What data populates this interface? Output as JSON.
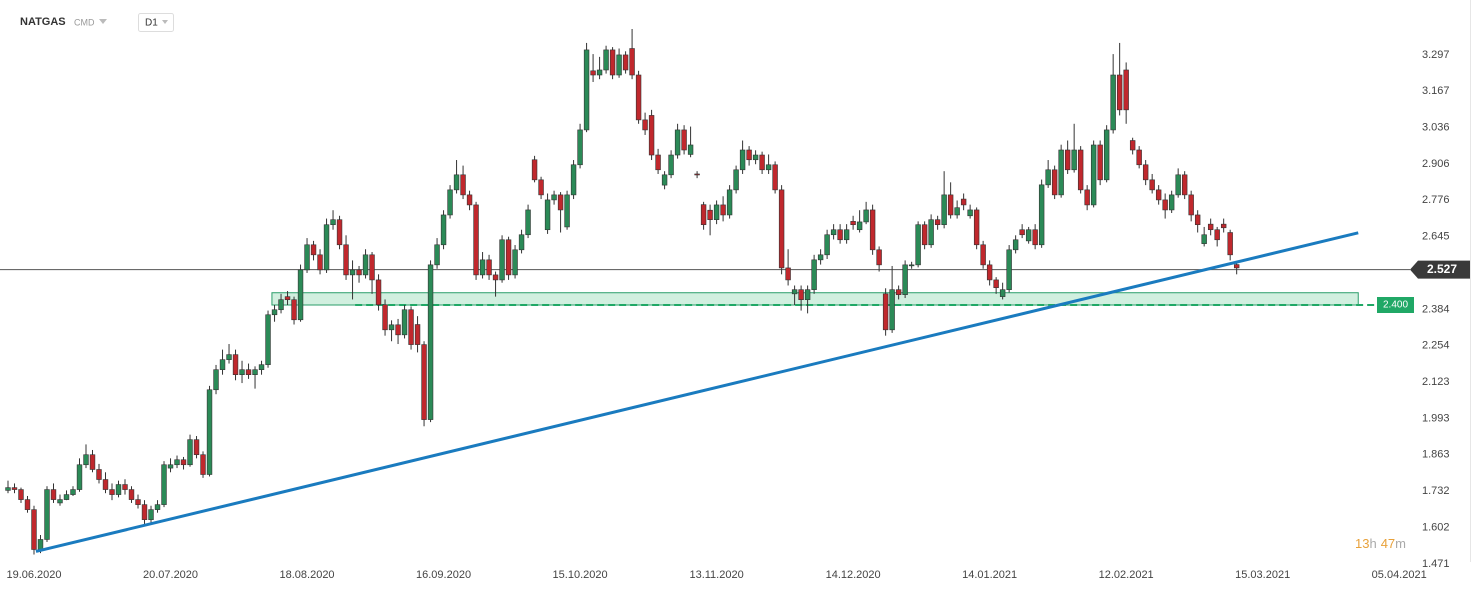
{
  "chart_data": {
    "type": "candlestick",
    "title": "NATGAS",
    "instrument_type": "CMD",
    "timeframe": "D1",
    "up_color": "#2b8a57",
    "down_color": "#c0282d",
    "ylim": [
      1.471,
      3.494
    ],
    "yticks": [
      3.297,
      3.167,
      3.036,
      2.906,
      2.776,
      2.645,
      2.384,
      2.254,
      2.123,
      1.993,
      1.863,
      1.732,
      1.602,
      1.471
    ],
    "xlim": [
      -1.23,
      217.2
    ],
    "xticks": [
      {
        "value": 4,
        "label": "19.06.2020"
      },
      {
        "value": 25,
        "label": "20.07.2020"
      },
      {
        "value": 46,
        "label": "18.08.2020"
      },
      {
        "value": 67,
        "label": "16.09.2020"
      },
      {
        "value": 88,
        "label": "15.10.2020"
      },
      {
        "value": 109,
        "label": "13.11.2020"
      },
      {
        "value": 130,
        "label": "14.12.2020"
      },
      {
        "value": 151,
        "label": "14.01.2021"
      },
      {
        "value": 172,
        "label": "12.02.2021"
      },
      {
        "value": 193,
        "label": "15.03.2021"
      },
      {
        "value": 214,
        "label": "05.04.2021"
      }
    ],
    "current_price": 2.527,
    "level": {
      "value": 2.4,
      "label": "2.400",
      "x_start": 53.4,
      "color": "#20a866"
    },
    "zone": {
      "low": 2.4,
      "high": 2.444,
      "x_start": 40.6,
      "x_end": 207.7
    },
    "trendline": {
      "x": [
        4.3,
        207.7
      ],
      "values": [
        1.516,
        2.659
      ],
      "color": "#1a7bbf"
    },
    "countdown": {
      "hours": "13",
      "hours_unit": "h",
      "minutes": "47",
      "minutes_unit": "m"
    },
    "candles": [
      [
        1.735,
        1.77,
        1.725,
        1.745
      ],
      [
        1.745,
        1.76,
        1.725,
        1.738
      ],
      [
        1.738,
        1.745,
        1.69,
        1.702
      ],
      [
        1.702,
        1.715,
        1.655,
        1.666
      ],
      [
        1.666,
        1.68,
        1.505,
        1.523
      ],
      [
        1.523,
        1.575,
        1.51,
        1.559
      ],
      [
        1.559,
        1.75,
        1.55,
        1.738
      ],
      [
        1.738,
        1.76,
        1.69,
        1.702
      ],
      [
        1.69,
        1.72,
        1.68,
        1.702
      ],
      [
        1.702,
        1.735,
        1.7,
        1.72
      ],
      [
        1.72,
        1.75,
        1.715,
        1.738
      ],
      [
        1.738,
        1.85,
        1.73,
        1.827
      ],
      [
        1.827,
        1.9,
        1.815,
        1.863
      ],
      [
        1.863,
        1.88,
        1.8,
        1.81
      ],
      [
        1.81,
        1.83,
        1.76,
        1.774
      ],
      [
        1.774,
        1.8,
        1.725,
        1.738
      ],
      [
        1.738,
        1.76,
        1.7,
        1.72
      ],
      [
        1.72,
        1.77,
        1.71,
        1.756
      ],
      [
        1.756,
        1.775,
        1.72,
        1.738
      ],
      [
        1.738,
        1.75,
        1.69,
        1.702
      ],
      [
        1.702,
        1.72,
        1.67,
        1.684
      ],
      [
        1.684,
        1.7,
        1.61,
        1.63
      ],
      [
        1.63,
        1.68,
        1.615,
        1.666
      ],
      [
        1.666,
        1.7,
        1.655,
        1.684
      ],
      [
        1.684,
        1.84,
        1.675,
        1.827
      ],
      [
        1.815,
        1.85,
        1.8,
        1.827
      ],
      [
        1.827,
        1.86,
        1.815,
        1.845
      ],
      [
        1.845,
        1.855,
        1.81,
        1.827
      ],
      [
        1.827,
        1.935,
        1.82,
        1.917
      ],
      [
        1.917,
        1.93,
        1.85,
        1.863
      ],
      [
        1.863,
        1.875,
        1.78,
        1.792
      ],
      [
        1.792,
        2.11,
        1.785,
        2.096
      ],
      [
        2.096,
        2.185,
        2.08,
        2.168
      ],
      [
        2.168,
        2.24,
        2.15,
        2.204
      ],
      [
        2.204,
        2.26,
        2.19,
        2.222
      ],
      [
        2.222,
        2.24,
        2.13,
        2.15
      ],
      [
        2.15,
        2.2,
        2.12,
        2.168
      ],
      [
        2.168,
        2.19,
        2.135,
        2.15
      ],
      [
        2.15,
        2.18,
        2.1,
        2.168
      ],
      [
        2.168,
        2.2,
        2.15,
        2.186
      ],
      [
        2.186,
        2.38,
        2.175,
        2.365
      ],
      [
        2.365,
        2.4,
        2.34,
        2.383
      ],
      [
        2.383,
        2.44,
        2.37,
        2.419
      ],
      [
        2.43,
        2.45,
        2.4,
        2.419
      ],
      [
        2.419,
        2.43,
        2.33,
        2.347
      ],
      [
        2.347,
        2.545,
        2.34,
        2.526
      ],
      [
        2.526,
        2.64,
        2.515,
        2.616
      ],
      [
        2.616,
        2.63,
        2.56,
        2.58
      ],
      [
        2.58,
        2.6,
        2.51,
        2.526
      ],
      [
        2.526,
        2.71,
        2.515,
        2.688
      ],
      [
        2.688,
        2.74,
        2.67,
        2.706
      ],
      [
        2.706,
        2.72,
        2.6,
        2.616
      ],
      [
        2.616,
        2.65,
        2.49,
        2.508
      ],
      [
        2.508,
        2.56,
        2.42,
        2.526
      ],
      [
        2.526,
        2.54,
        2.48,
        2.508
      ],
      [
        2.508,
        2.6,
        2.495,
        2.58
      ],
      [
        2.58,
        2.59,
        2.44,
        2.49
      ],
      [
        2.49,
        2.51,
        2.38,
        2.401
      ],
      [
        2.401,
        2.42,
        2.29,
        2.311
      ],
      [
        2.311,
        2.345,
        2.27,
        2.329
      ],
      [
        2.329,
        2.35,
        2.26,
        2.293
      ],
      [
        2.293,
        2.4,
        2.28,
        2.383
      ],
      [
        2.383,
        2.395,
        2.24,
        2.258
      ],
      [
        2.33,
        2.36,
        2.23,
        2.258
      ],
      [
        2.258,
        2.27,
        1.965,
        1.989
      ],
      [
        1.989,
        2.56,
        1.98,
        2.544
      ],
      [
        2.544,
        2.64,
        2.53,
        2.616
      ],
      [
        2.616,
        2.74,
        2.6,
        2.723
      ],
      [
        2.723,
        2.83,
        2.71,
        2.813
      ],
      [
        2.813,
        2.92,
        2.8,
        2.867
      ],
      [
        2.867,
        2.9,
        2.78,
        2.795
      ],
      [
        2.795,
        2.81,
        2.74,
        2.759
      ],
      [
        2.759,
        2.77,
        2.49,
        2.508
      ],
      [
        2.508,
        2.59,
        2.495,
        2.562
      ],
      [
        2.562,
        2.58,
        2.49,
        2.508
      ],
      [
        2.508,
        2.52,
        2.43,
        2.49
      ],
      [
        2.49,
        2.65,
        2.48,
        2.634
      ],
      [
        2.634,
        2.645,
        2.49,
        2.508
      ],
      [
        2.508,
        2.615,
        2.495,
        2.598
      ],
      [
        2.598,
        2.67,
        2.585,
        2.652
      ],
      [
        2.652,
        2.76,
        2.64,
        2.741
      ],
      [
        2.921,
        2.935,
        2.84,
        2.849
      ],
      [
        2.849,
        2.86,
        2.78,
        2.795
      ],
      [
        2.67,
        2.8,
        2.655,
        2.777
      ],
      [
        2.777,
        2.81,
        2.76,
        2.795
      ],
      [
        2.795,
        2.805,
        2.66,
        2.741
      ],
      [
        2.68,
        2.81,
        2.67,
        2.795
      ],
      [
        2.795,
        2.92,
        2.78,
        2.903
      ],
      [
        2.903,
        3.05,
        2.89,
        3.028
      ],
      [
        3.028,
        3.34,
        3.02,
        3.315
      ],
      [
        3.24,
        3.3,
        3.2,
        3.225
      ],
      [
        3.225,
        3.29,
        3.21,
        3.243
      ],
      [
        3.243,
        3.33,
        3.23,
        3.315
      ],
      [
        3.315,
        3.325,
        3.21,
        3.225
      ],
      [
        3.225,
        3.32,
        3.215,
        3.297
      ],
      [
        3.297,
        3.31,
        3.23,
        3.243
      ],
      [
        3.32,
        3.39,
        3.21,
        3.225
      ],
      [
        3.225,
        3.24,
        3.05,
        3.064
      ],
      [
        3.064,
        3.09,
        3.01,
        3.028
      ],
      [
        3.08,
        3.1,
        2.92,
        2.938
      ],
      [
        2.938,
        2.96,
        2.87,
        2.885
      ],
      [
        2.83,
        2.88,
        2.815,
        2.867
      ],
      [
        2.867,
        2.955,
        2.855,
        2.938
      ],
      [
        2.938,
        3.05,
        2.925,
        3.028
      ],
      [
        3.028,
        3.045,
        2.94,
        2.956
      ],
      [
        2.94,
        3.04,
        2.93,
        2.974
      ],
      [
        2.87,
        2.88,
        2.855,
        2.867
      ],
      [
        2.76,
        2.77,
        2.67,
        2.688
      ],
      [
        2.74,
        2.76,
        2.65,
        2.706
      ],
      [
        2.706,
        2.775,
        2.69,
        2.759
      ],
      [
        2.759,
        2.79,
        2.7,
        2.723
      ],
      [
        2.723,
        2.83,
        2.71,
        2.813
      ],
      [
        2.813,
        2.9,
        2.8,
        2.885
      ],
      [
        2.885,
        2.99,
        2.87,
        2.956
      ],
      [
        2.956,
        2.97,
        2.9,
        2.921
      ],
      [
        2.921,
        2.955,
        2.905,
        2.938
      ],
      [
        2.938,
        2.95,
        2.87,
        2.885
      ],
      [
        2.885,
        2.94,
        2.87,
        2.903
      ],
      [
        2.903,
        2.915,
        2.8,
        2.813
      ],
      [
        2.813,
        2.83,
        2.51,
        2.533
      ],
      [
        2.533,
        2.6,
        2.47,
        2.49
      ],
      [
        2.44,
        2.47,
        2.4,
        2.455
      ],
      [
        2.455,
        2.47,
        2.38,
        2.419
      ],
      [
        2.419,
        2.47,
        2.37,
        2.455
      ],
      [
        2.455,
        2.58,
        2.44,
        2.562
      ],
      [
        2.562,
        2.6,
        2.545,
        2.58
      ],
      [
        2.58,
        2.67,
        2.565,
        2.652
      ],
      [
        2.652,
        2.69,
        2.635,
        2.67
      ],
      [
        2.67,
        2.69,
        2.62,
        2.634
      ],
      [
        2.634,
        2.69,
        2.62,
        2.67
      ],
      [
        2.7,
        2.72,
        2.67,
        2.688
      ],
      [
        2.67,
        2.74,
        2.66,
        2.698
      ],
      [
        2.698,
        2.77,
        2.69,
        2.741
      ],
      [
        2.741,
        2.76,
        2.58,
        2.598
      ],
      [
        2.598,
        2.61,
        2.52,
        2.544
      ],
      [
        2.44,
        2.46,
        2.29,
        2.311
      ],
      [
        2.311,
        2.54,
        2.3,
        2.455
      ],
      [
        2.455,
        2.47,
        2.42,
        2.437
      ],
      [
        2.437,
        2.56,
        2.425,
        2.544
      ],
      [
        2.544,
        2.555,
        2.53,
        2.544
      ],
      [
        2.544,
        2.7,
        2.535,
        2.688
      ],
      [
        2.688,
        2.7,
        2.6,
        2.616
      ],
      [
        2.616,
        2.725,
        2.605,
        2.706
      ],
      [
        2.706,
        2.72,
        2.67,
        2.688
      ],
      [
        2.688,
        2.88,
        2.675,
        2.795
      ],
      [
        2.795,
        2.84,
        2.71,
        2.723
      ],
      [
        2.723,
        2.775,
        2.71,
        2.749
      ],
      [
        2.78,
        2.8,
        2.74,
        2.759
      ],
      [
        2.72,
        2.76,
        2.71,
        2.741
      ],
      [
        2.741,
        2.75,
        2.6,
        2.616
      ],
      [
        2.616,
        2.63,
        2.53,
        2.544
      ],
      [
        2.544,
        2.56,
        2.47,
        2.49
      ],
      [
        2.49,
        2.5,
        2.44,
        2.462
      ],
      [
        2.43,
        2.48,
        2.42,
        2.455
      ],
      [
        2.455,
        2.615,
        2.445,
        2.598
      ],
      [
        2.598,
        2.65,
        2.585,
        2.634
      ],
      [
        2.67,
        2.69,
        2.64,
        2.652
      ],
      [
        2.63,
        2.68,
        2.62,
        2.67
      ],
      [
        2.67,
        2.69,
        2.6,
        2.616
      ],
      [
        2.616,
        2.85,
        2.605,
        2.831
      ],
      [
        2.831,
        2.92,
        2.82,
        2.885
      ],
      [
        2.885,
        2.9,
        2.78,
        2.795
      ],
      [
        2.795,
        2.975,
        2.785,
        2.956
      ],
      [
        2.956,
        2.99,
        2.87,
        2.885
      ],
      [
        2.885,
        3.05,
        2.875,
        2.956
      ],
      [
        2.956,
        2.97,
        2.8,
        2.813
      ],
      [
        2.813,
        2.83,
        2.74,
        2.759
      ],
      [
        2.759,
        2.99,
        2.75,
        2.974
      ],
      [
        2.974,
        2.99,
        2.83,
        2.849
      ],
      [
        2.849,
        3.045,
        2.84,
        3.028
      ],
      [
        3.028,
        3.3,
        3.015,
        3.225
      ],
      [
        3.225,
        3.34,
        3.08,
        3.1
      ],
      [
        3.243,
        3.27,
        3.05,
        3.1
      ],
      [
        2.99,
        3.0,
        2.94,
        2.956
      ],
      [
        2.956,
        2.97,
        2.89,
        2.903
      ],
      [
        2.903,
        2.92,
        2.83,
        2.849
      ],
      [
        2.849,
        2.87,
        2.8,
        2.813
      ],
      [
        2.813,
        2.83,
        2.76,
        2.777
      ],
      [
        2.777,
        2.8,
        2.71,
        2.741
      ],
      [
        2.741,
        2.81,
        2.73,
        2.795
      ],
      [
        2.795,
        2.89,
        2.785,
        2.867
      ],
      [
        2.867,
        2.88,
        2.78,
        2.795
      ],
      [
        2.795,
        2.81,
        2.7,
        2.723
      ],
      [
        2.723,
        2.74,
        2.66,
        2.688
      ],
      [
        2.62,
        2.68,
        2.61,
        2.652
      ],
      [
        2.69,
        2.71,
        2.65,
        2.67
      ],
      [
        2.67,
        2.68,
        2.61,
        2.634
      ],
      [
        2.69,
        2.71,
        2.66,
        2.677
      ],
      [
        2.66,
        2.67,
        2.56,
        2.58
      ],
      [
        2.545,
        2.55,
        2.51,
        2.533
      ]
    ]
  }
}
